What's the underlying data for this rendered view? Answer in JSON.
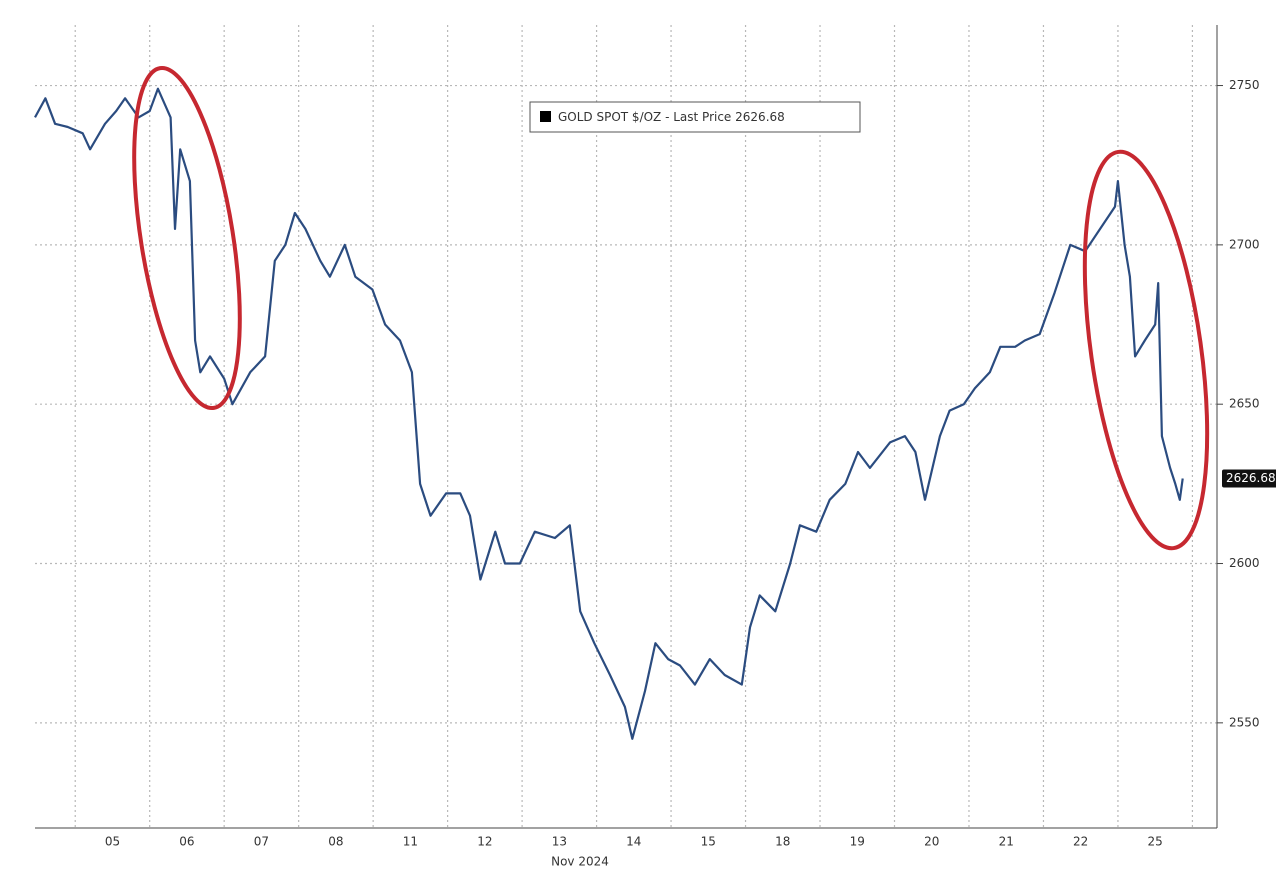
{
  "chart_data": {
    "type": "line",
    "xlabel": "Nov 2024",
    "x": [
      -0.54,
      -0.4,
      -0.27,
      -0.1,
      0.1,
      0.2,
      0.4,
      0.55,
      0.67,
      0.85,
      1.0,
      1.11,
      1.28,
      1.34,
      1.41,
      1.54,
      1.61,
      1.68,
      1.81,
      2.0,
      2.11,
      2.35,
      2.55,
      2.68,
      2.82,
      2.95,
      3.09,
      3.29,
      3.42,
      3.62,
      3.76,
      3.99,
      4.16,
      4.36,
      4.52,
      4.63,
      4.77,
      4.98,
      5.17,
      5.3,
      5.44,
      5.64,
      5.77,
      5.97,
      6.17,
      6.44,
      6.64,
      6.78,
      6.97,
      7.18,
      7.38,
      7.48,
      7.65,
      7.79,
      7.96,
      8.12,
      8.32,
      8.52,
      8.72,
      8.95,
      9.06,
      9.19,
      9.4,
      9.6,
      9.73,
      9.95,
      10.13,
      10.34,
      10.51,
      10.67,
      10.94,
      11.14,
      11.28,
      11.41,
      11.61,
      11.74,
      11.93,
      12.08,
      12.28,
      12.42,
      12.62,
      12.75,
      12.95,
      13.15,
      13.36,
      13.56,
      13.76,
      13.96,
      14.0,
      14.09,
      14.16,
      14.23,
      14.36,
      14.5,
      14.54,
      14.59,
      14.7,
      14.77,
      14.83,
      14.87
    ],
    "series": [
      {
        "name": "GOLD SPOT $/OZ - Last Price",
        "color": "#2b4c80",
        "values": [
          2740,
          2746,
          2738,
          2737,
          2735,
          2730,
          2738,
          2742,
          2746,
          2740,
          2742,
          2749,
          2740,
          2705,
          2730,
          2720,
          2670,
          2660,
          2665,
          2658,
          2650,
          2660,
          2665,
          2695,
          2700,
          2710,
          2705,
          2695,
          2690,
          2700,
          2690,
          2686,
          2675,
          2670,
          2660,
          2625,
          2615,
          2622,
          2622,
          2615,
          2595,
          2610,
          2600,
          2600,
          2610,
          2608,
          2612,
          2585,
          2575,
          2565,
          2555,
          2545,
          2560,
          2575,
          2570,
          2568,
          2562,
          2570,
          2565,
          2562,
          2580,
          2590,
          2585,
          2600,
          2612,
          2610,
          2620,
          2625,
          2635,
          2630,
          2638,
          2640,
          2635,
          2620,
          2640,
          2648,
          2650,
          2655,
          2660,
          2668,
          2668,
          2670,
          2672,
          2685,
          2700,
          2698,
          2705,
          2712,
          2720,
          2700,
          2690,
          2665,
          2670,
          2675,
          2688,
          2640,
          2630,
          2625,
          2620,
          2626.68
        ]
      }
    ],
    "last_price": 2626.68,
    "xlim": [
      -0.54,
      15.33
    ],
    "xticks": [
      {
        "value": 0.5,
        "label": "05"
      },
      {
        "value": 1.5,
        "label": "06"
      },
      {
        "value": 2.5,
        "label": "07"
      },
      {
        "value": 3.5,
        "label": "08"
      },
      {
        "value": 4.5,
        "label": "11"
      },
      {
        "value": 5.5,
        "label": "12"
      },
      {
        "value": 6.5,
        "label": "13"
      },
      {
        "value": 7.5,
        "label": "14"
      },
      {
        "value": 8.5,
        "label": "15"
      },
      {
        "value": 9.5,
        "label": "18"
      },
      {
        "value": 10.5,
        "label": "19"
      },
      {
        "value": 11.5,
        "label": "20"
      },
      {
        "value": 12.5,
        "label": "21"
      },
      {
        "value": 13.5,
        "label": "22"
      },
      {
        "value": 14.5,
        "label": "25"
      }
    ],
    "ylim": [
      2517,
      2769
    ],
    "yticks": [
      2550,
      2600,
      2650,
      2700,
      2750
    ],
    "grid": true
  }
}
